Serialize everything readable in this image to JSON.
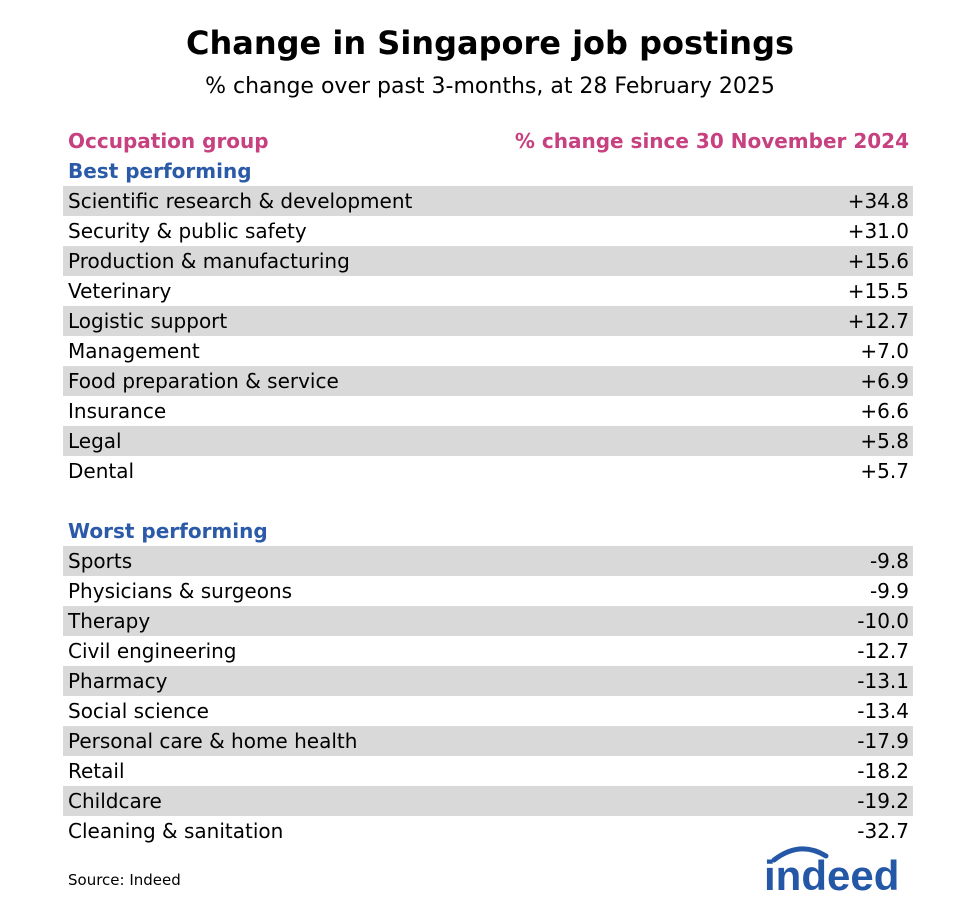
{
  "title": "Change in Singapore job postings",
  "subtitle": "% change over past 3-months, at 28 February 2025",
  "colors": {
    "header": "#c7407f",
    "section": "#2b5aa8",
    "shade": "#d9d9d9",
    "logo": "#2557a7"
  },
  "chart_data": {
    "type": "table",
    "columns": [
      "Occupation group",
      "% change since 30 November 2024"
    ],
    "sections": [
      {
        "name": "Best performing",
        "rows": [
          {
            "label": "Scientific research & development",
            "value": "+34.8"
          },
          {
            "label": "Security & public safety",
            "value": "+31.0"
          },
          {
            "label": "Production & manufacturing",
            "value": "+15.6"
          },
          {
            "label": "Veterinary",
            "value": "+15.5"
          },
          {
            "label": "Logistic support",
            "value": "+12.7"
          },
          {
            "label": "Management",
            "value": "+7.0"
          },
          {
            "label": "Food preparation & service",
            "value": "+6.9"
          },
          {
            "label": "Insurance",
            "value": "+6.6"
          },
          {
            "label": "Legal",
            "value": "+5.8"
          },
          {
            "label": "Dental",
            "value": "+5.7"
          }
        ]
      },
      {
        "name": "Worst performing",
        "rows": [
          {
            "label": "Sports",
            "value": "-9.8"
          },
          {
            "label": "Physicians & surgeons",
            "value": "-9.9"
          },
          {
            "label": "Therapy",
            "value": "-10.0"
          },
          {
            "label": "Civil engineering",
            "value": "-12.7"
          },
          {
            "label": "Pharmacy",
            "value": "-13.1"
          },
          {
            "label": "Social science",
            "value": "-13.4"
          },
          {
            "label": "Personal care & home health",
            "value": "-17.9"
          },
          {
            "label": "Retail",
            "value": "-18.2"
          },
          {
            "label": "Childcare",
            "value": "-19.2"
          },
          {
            "label": "Cleaning & sanitation",
            "value": "-32.7"
          }
        ]
      }
    ]
  },
  "source": "Source: Indeed",
  "logo_text": "indeed"
}
